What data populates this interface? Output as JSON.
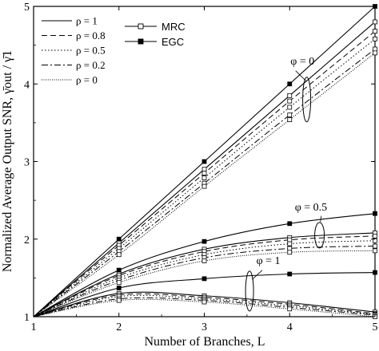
{
  "chart_data": {
    "type": "line",
    "xlabel": "Number of Branches, L",
    "ylabel": "Normalized Average Output SNR, γ̄out / γ̄1",
    "xlim": [
      1,
      5
    ],
    "ylim": [
      1,
      5
    ],
    "x_ticks": [
      "1",
      "2",
      "3",
      "4",
      "5"
    ],
    "y_ticks": [
      "1",
      "2",
      "3",
      "4",
      "5"
    ],
    "x": [
      1,
      2,
      3,
      4,
      5
    ],
    "legend_rho": [
      {
        "label": "ρ = 1",
        "dash": "solid"
      },
      {
        "label": "ρ = 0.8",
        "dash": "dashed"
      },
      {
        "label": "ρ = 0.5",
        "dash": "dotted"
      },
      {
        "label": "ρ = 0.2",
        "dash": "dashdot"
      },
      {
        "label": "ρ = 0",
        "dash": "densedot"
      }
    ],
    "legend_marker": [
      {
        "label": "MRC",
        "marker": "open-square"
      },
      {
        "label": "EGC",
        "marker": "filled-square"
      }
    ],
    "annotations": [
      {
        "text": "φ = 0",
        "x": 4.15,
        "y": 4.25
      },
      {
        "text": "φ = 0.5",
        "x": 4.25,
        "y": 2.37
      },
      {
        "text": "φ = 1",
        "x": 3.75,
        "y": 1.68
      }
    ],
    "groups": [
      {
        "phi": "φ = 0",
        "series": [
          {
            "name": "EGC ρ = 1",
            "marker": "filled",
            "dash": "solid",
            "values": [
              1,
              2.0,
              3.0,
              4.0,
              5.0
            ]
          },
          {
            "name": "MRC ρ = 1",
            "marker": "open",
            "dash": "solid",
            "values": [
              1,
              1.95,
              2.9,
              3.85,
              4.8
            ]
          },
          {
            "name": "MRC ρ = 0.8",
            "marker": "open",
            "dash": "dashed",
            "values": [
              1,
              1.92,
              2.85,
              3.78,
              4.68
            ]
          },
          {
            "name": "MRC ρ = 0.5",
            "marker": "open",
            "dash": "dotted",
            "values": [
              1,
              1.88,
              2.79,
              3.7,
              4.58
            ]
          },
          {
            "name": "MRC ρ = 0.2",
            "marker": "open",
            "dash": "dashdot",
            "values": [
              1,
              1.84,
              2.72,
              3.6,
              4.45
            ]
          },
          {
            "name": "MRC ρ = 0",
            "marker": "open",
            "dash": "densedot",
            "values": [
              1,
              1.8,
              2.68,
              3.54,
              4.4
            ]
          }
        ]
      },
      {
        "phi": "φ = 0.5",
        "series": [
          {
            "name": "EGC ρ = 1",
            "marker": "filled",
            "dash": "solid",
            "values": [
              1,
              1.6,
              1.97,
              2.2,
              2.33
            ]
          },
          {
            "name": "MRC ρ = 1",
            "marker": "open",
            "dash": "solid",
            "values": [
              1,
              1.55,
              1.87,
              2.02,
              2.08
            ]
          },
          {
            "name": "MRC ρ = 0.8",
            "marker": "open",
            "dash": "dashed",
            "values": [
              1,
              1.53,
              1.84,
              1.99,
              2.04
            ]
          },
          {
            "name": "MRC ρ = 0.5",
            "marker": "open",
            "dash": "dotted",
            "values": [
              1,
              1.5,
              1.8,
              1.94,
              1.98
            ]
          },
          {
            "name": "MRC ρ = 0.2",
            "marker": "open",
            "dash": "dashdot",
            "values": [
              1,
              1.47,
              1.76,
              1.88,
              1.91
            ]
          },
          {
            "name": "MRC ρ = 0",
            "marker": "open",
            "dash": "densedot",
            "values": [
              1,
              1.44,
              1.72,
              1.83,
              1.85
            ]
          }
        ]
      },
      {
        "phi": "φ = 1",
        "series": [
          {
            "name": "EGC ρ = 1",
            "marker": "filled",
            "dash": "solid",
            "values": [
              1,
              1.37,
              1.49,
              1.55,
              1.57
            ]
          },
          {
            "name": "MRC ρ = 1",
            "marker": "open",
            "dash": "solid",
            "values": [
              1,
              1.3,
              1.27,
              1.18,
              1.06
            ]
          },
          {
            "name": "MRC ρ = 0.8",
            "marker": "open",
            "dash": "dashed",
            "values": [
              1,
              1.28,
              1.25,
              1.16,
              1.04
            ]
          },
          {
            "name": "MRC ρ = 0.5",
            "marker": "open",
            "dash": "dotted",
            "values": [
              1,
              1.26,
              1.23,
              1.14,
              1.03
            ]
          },
          {
            "name": "MRC ρ = 0.2",
            "marker": "open",
            "dash": "dashdot",
            "values": [
              1,
              1.23,
              1.21,
              1.12,
              1.02
            ]
          },
          {
            "name": "MRC ρ = 0",
            "marker": "open",
            "dash": "densedot",
            "values": [
              1,
              1.21,
              1.19,
              1.1,
              1.0
            ]
          }
        ]
      }
    ]
  }
}
